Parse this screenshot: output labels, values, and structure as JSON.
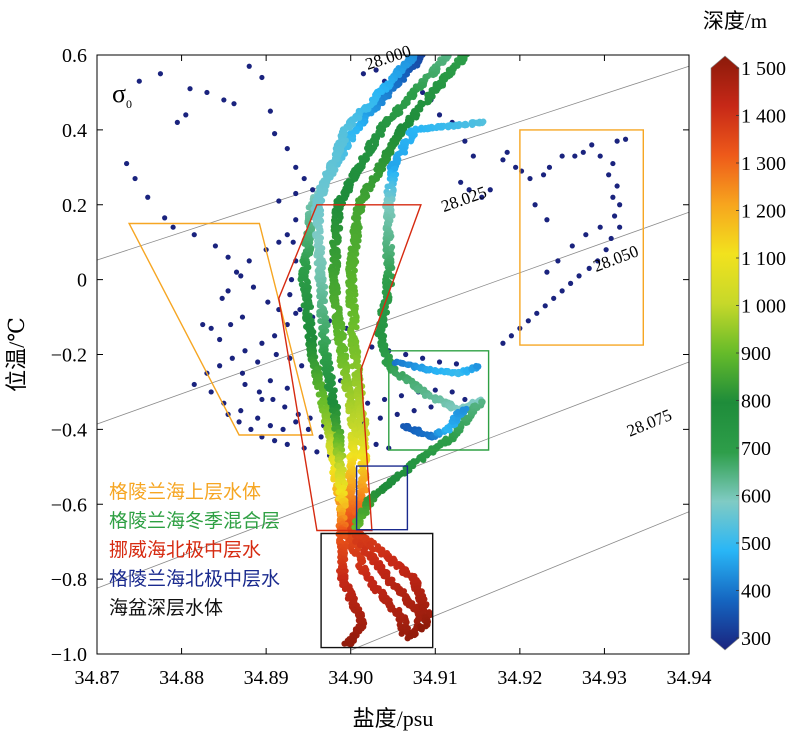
{
  "chart_data": {
    "type": "scatter",
    "title": "",
    "xlabel": "盐度/psu",
    "ylabel": "位温/℃",
    "xlim": [
      34.87,
      34.94
    ],
    "ylim": [
      -1.0,
      0.6
    ],
    "x_ticks": [
      "34.87",
      "34.88",
      "34.89",
      "34.90",
      "34.91",
      "34.92",
      "34.93",
      "34.94"
    ],
    "y_ticks": [
      "0.6",
      "0.4",
      "0.2",
      "0",
      "−0.2",
      "−0.4",
      "−0.6",
      "−0.8",
      "−1.0"
    ],
    "x_tick_values": [
      34.87,
      34.88,
      34.89,
      34.9,
      34.91,
      34.92,
      34.93,
      34.94
    ],
    "y_tick_values": [
      0.6,
      0.4,
      0.2,
      0,
      -0.2,
      -0.4,
      -0.6,
      -0.8,
      -1.0
    ],
    "sigma_label": "σ",
    "sigma_sub": "0",
    "isopycnals": [
      {
        "label": "28.000",
        "points": [
          [
            34.867,
            0.03
          ],
          [
            34.94,
            0.57
          ]
        ],
        "label_at": [
          34.902,
          0.56
        ]
      },
      {
        "label": "28.025",
        "points": [
          [
            34.867,
            -0.41
          ],
          [
            34.94,
            0.18
          ]
        ],
        "label_at": [
          34.911,
          0.18
        ]
      },
      {
        "label": "28.050",
        "points": [
          [
            34.867,
            -0.85
          ],
          [
            34.94,
            -0.22
          ]
        ],
        "label_at": [
          34.929,
          0.02
        ]
      },
      {
        "label": "28.075",
        "points": [
          [
            34.9,
            -0.99
          ],
          [
            34.94,
            -0.62
          ]
        ],
        "label_at": [
          34.933,
          -0.42
        ]
      }
    ],
    "colorbar": {
      "title": "深度/m",
      "min": 300,
      "max": 1500,
      "ticks": [
        "300",
        "400",
        "500",
        "600",
        "700",
        "800",
        "900",
        "1 000",
        "1 100",
        "1 200",
        "1 300",
        "1 400",
        "1 500"
      ],
      "tick_values": [
        300,
        400,
        500,
        600,
        700,
        800,
        900,
        1000,
        1100,
        1200,
        1300,
        1400,
        1500
      ],
      "colors": [
        "#1a237e",
        "#1565c0",
        "#29b6f6",
        "#80cbc4",
        "#2e9e4a",
        "#1e8c3a",
        "#66bb2a",
        "#c6d82a",
        "#f2e21e",
        "#f7a51e",
        "#ee5a1a",
        "#c62817",
        "#8b1a0a"
      ]
    },
    "regions": [
      {
        "name": "格陵兰海上层水体",
        "color": "#f6a623",
        "polygon": [
          [
            34.8738,
            0.15
          ],
          [
            34.8892,
            0.15
          ],
          [
            34.8955,
            -0.415
          ],
          [
            34.8868,
            -0.415
          ]
        ]
      },
      {
        "name": "格陵兰海冬季混合层",
        "color": "#2ea043",
        "polygon": [
          [
            34.9045,
            -0.19
          ],
          [
            34.9163,
            -0.19
          ],
          [
            34.9163,
            -0.455
          ],
          [
            34.9045,
            -0.455
          ]
        ]
      },
      {
        "name": "挪威海北极中层水",
        "color": "#d62a10",
        "polygon": [
          [
            34.896,
            0.2
          ],
          [
            34.9083,
            0.2
          ],
          [
            34.9012,
            -0.24
          ],
          [
            34.9025,
            -0.67
          ],
          [
            34.896,
            -0.67
          ],
          [
            34.8915,
            -0.05
          ]
        ]
      },
      {
        "name": "格陵兰海北极中层水",
        "color": "#1a2a8e",
        "polygon": [
          [
            34.9007,
            -0.498
          ],
          [
            34.9067,
            -0.498
          ],
          [
            34.9067,
            -0.668
          ],
          [
            34.9007,
            -0.668
          ]
        ]
      },
      {
        "name": "海盆深层水体",
        "color": "#111111",
        "polygon": [
          [
            34.8965,
            -0.678
          ],
          [
            34.9097,
            -0.678
          ],
          [
            34.9097,
            -0.983
          ],
          [
            34.8965,
            -0.983
          ]
        ]
      },
      {
        "name": "",
        "color": "#f6a623",
        "polygon": [
          [
            34.92,
            0.4
          ],
          [
            34.9346,
            0.4
          ],
          [
            34.9346,
            -0.175
          ],
          [
            34.92,
            -0.175
          ]
        ]
      }
    ],
    "legend": [
      {
        "label": "格陵兰海上层水体",
        "color": "#f6a623"
      },
      {
        "label": "格陵兰海冬季混合层",
        "color": "#2ea043"
      },
      {
        "label": "挪威海北极中层水",
        "color": "#d62a10"
      },
      {
        "label": "格陵兰海北极中层水",
        "color": "#1a2a8e"
      },
      {
        "label": "海盆深层水体",
        "color": "#111111"
      }
    ],
    "profiles": [
      {
        "offset": 0.0,
        "anchors": [
          [
            34.9085,
            0.6,
            350
          ],
          [
            34.9005,
            0.4,
            500
          ],
          [
            34.8955,
            0.2,
            620
          ],
          [
            34.8945,
            0.0,
            720
          ],
          [
            34.8955,
            -0.2,
            820
          ],
          [
            34.8975,
            -0.4,
            950
          ],
          [
            34.8985,
            -0.55,
            1150
          ],
          [
            34.8995,
            -0.67,
            1320
          ],
          [
            34.902,
            -0.8,
            1400
          ],
          [
            34.906,
            -0.9,
            1450
          ],
          [
            34.9065,
            -0.95,
            1480
          ]
        ]
      },
      {
        "offset": 0.0,
        "anchors": [
          [
            34.9115,
            0.6,
            650
          ],
          [
            34.9035,
            0.4,
            750
          ],
          [
            34.8985,
            0.2,
            800
          ],
          [
            34.898,
            0.0,
            850
          ],
          [
            34.899,
            -0.2,
            900
          ],
          [
            34.9005,
            -0.4,
            1000
          ],
          [
            34.9,
            -0.55,
            1200
          ],
          [
            34.9,
            -0.67,
            1350
          ],
          [
            34.9045,
            -0.8,
            1420
          ],
          [
            34.9085,
            -0.9,
            1460
          ],
          [
            34.907,
            -0.96,
            1490
          ]
        ]
      },
      {
        "offset": 0.0,
        "anchors": [
          [
            34.9135,
            0.6,
            700
          ],
          [
            34.906,
            0.4,
            800
          ],
          [
            34.901,
            0.2,
            850
          ],
          [
            34.9,
            0.0,
            880
          ],
          [
            34.9005,
            -0.2,
            920
          ],
          [
            34.9015,
            -0.4,
            1000
          ],
          [
            34.9015,
            -0.55,
            1200
          ],
          [
            34.9005,
            -0.67,
            1350
          ],
          [
            34.9075,
            -0.8,
            1420
          ],
          [
            34.909,
            -0.9,
            1470
          ],
          [
            34.9085,
            -0.94,
            1500
          ]
        ]
      },
      {
        "offset": 0.0,
        "anchors": [
          [
            34.9075,
            0.6,
            450
          ],
          [
            34.8995,
            0.4,
            550
          ],
          [
            34.896,
            0.2,
            580
          ],
          [
            34.8965,
            0.0,
            620
          ],
          [
            34.897,
            -0.2,
            700
          ],
          [
            34.8985,
            -0.4,
            850
          ],
          [
            34.899,
            -0.6,
            1150
          ],
          [
            34.899,
            -0.67,
            1300
          ],
          [
            34.899,
            -0.8,
            1400
          ],
          [
            34.9015,
            -0.92,
            1460
          ],
          [
            34.8995,
            -0.98,
            1490
          ]
        ]
      },
      {
        "offset": 0.0,
        "anchors": [
          [
            34.9155,
            0.42,
            550
          ],
          [
            34.9075,
            0.4,
            500
          ],
          [
            34.905,
            0.3,
            480
          ],
          [
            34.9045,
            0.2,
            600
          ],
          [
            34.9045,
            0.0,
            700
          ],
          [
            34.9035,
            -0.15,
            750
          ],
          [
            34.9045,
            -0.23,
            700
          ]
        ]
      },
      {
        "offset": 0.0,
        "anchors": [
          [
            34.9045,
            -0.23,
            700
          ],
          [
            34.9085,
            -0.3,
            650
          ],
          [
            34.913,
            -0.35,
            600
          ],
          [
            34.9155,
            -0.32,
            600
          ]
        ]
      },
      {
        "offset": 0.0,
        "anchors": [
          [
            34.9005,
            -0.66,
            900
          ],
          [
            34.9025,
            -0.58,
            820
          ],
          [
            34.907,
            -0.5,
            760
          ],
          [
            34.912,
            -0.42,
            700
          ],
          [
            34.9155,
            -0.32,
            650
          ]
        ]
      },
      {
        "offset": 0.0,
        "anchors": [
          [
            34.9065,
            -0.39,
            380
          ],
          [
            34.9095,
            -0.42,
            420
          ],
          [
            34.9115,
            -0.4,
            500
          ],
          [
            34.9135,
            -0.34,
            450
          ]
        ]
      },
      {
        "offset": 0.0,
        "anchors": [
          [
            34.9055,
            -0.22,
            420
          ],
          [
            34.909,
            -0.24,
            480
          ],
          [
            34.913,
            -0.25,
            520
          ],
          [
            34.9155,
            -0.23,
            450
          ]
        ]
      }
    ],
    "scatter_low": [
      [
        34.8735,
        0.31
      ],
      [
        34.8745,
        0.27
      ],
      [
        34.876,
        0.22
      ],
      [
        34.878,
        0.165
      ],
      [
        34.879,
        0.14
      ],
      [
        34.8815,
        0.12
      ],
      [
        34.884,
        0.09
      ],
      [
        34.8855,
        0.06
      ],
      [
        34.887,
        0.01
      ],
      [
        34.875,
        0.53
      ],
      [
        34.8775,
        0.55
      ],
      [
        34.881,
        0.51
      ],
      [
        34.883,
        0.5
      ],
      [
        34.8805,
        0.44
      ],
      [
        34.8795,
        0.42
      ],
      [
        34.885,
        0.48
      ],
      [
        34.8862,
        0.47
      ],
      [
        34.888,
        0.57
      ],
      [
        34.8895,
        0.54
      ],
      [
        34.8905,
        0.45
      ],
      [
        34.891,
        0.39
      ],
      [
        34.8925,
        0.35
      ],
      [
        34.8935,
        0.3
      ],
      [
        34.8945,
        0.27
      ],
      [
        34.8955,
        0.24
      ],
      [
        34.8935,
        0.23
      ],
      [
        34.8915,
        0.21
      ],
      [
        34.8935,
        0.16
      ],
      [
        34.8932,
        0.1
      ],
      [
        34.8935,
        0.05
      ],
      [
        34.893,
        0.0
      ],
      [
        34.8928,
        -0.04
      ],
      [
        34.894,
        -0.08
      ],
      [
        34.8925,
        -0.12
      ],
      [
        34.891,
        -0.15
      ],
      [
        34.8895,
        -0.17
      ],
      [
        34.8875,
        -0.19
      ],
      [
        34.886,
        -0.21
      ],
      [
        34.8845,
        -0.23
      ],
      [
        34.883,
        -0.25
      ],
      [
        34.8815,
        -0.28
      ],
      [
        34.8835,
        -0.3
      ],
      [
        34.885,
        -0.33
      ],
      [
        34.887,
        -0.35
      ],
      [
        34.889,
        -0.37
      ],
      [
        34.8905,
        -0.39
      ],
      [
        34.892,
        -0.4
      ],
      [
        34.8845,
        -0.16
      ],
      [
        34.8835,
        -0.13
      ],
      [
        34.8825,
        -0.12
      ],
      [
        34.8858,
        -0.12
      ],
      [
        34.8872,
        -0.1
      ],
      [
        34.8848,
        -0.05
      ],
      [
        34.8855,
        -0.03
      ],
      [
        34.8885,
        -0.02
      ],
      [
        34.8902,
        -0.06
      ],
      [
        34.8915,
        -0.08
      ],
      [
        34.8872,
        -0.25
      ],
      [
        34.889,
        -0.22
      ],
      [
        34.8905,
        -0.27
      ],
      [
        34.8925,
        -0.29
      ],
      [
        34.8855,
        -0.36
      ],
      [
        34.8868,
        -0.38
      ],
      [
        34.8882,
        -0.4
      ],
      [
        34.8895,
        -0.42
      ],
      [
        34.891,
        -0.43
      ],
      [
        34.8925,
        -0.44
      ],
      [
        34.8945,
        -0.45
      ],
      [
        34.896,
        -0.46
      ],
      [
        34.8975,
        -0.47
      ],
      [
        34.8985,
        -0.48
      ],
      [
        34.8965,
        -0.42
      ],
      [
        34.895,
        -0.4
      ],
      [
        34.8935,
        -0.38
      ],
      [
        34.8895,
        -0.32
      ],
      [
        34.898,
        -0.35
      ],
      [
        34.9,
        -0.34
      ],
      [
        34.902,
        -0.33
      ],
      [
        34.904,
        -0.32
      ],
      [
        34.906,
        -0.31
      ],
      [
        34.908,
        -0.3
      ],
      [
        34.91,
        -0.295
      ],
      [
        34.912,
        -0.3
      ],
      [
        34.9015,
        -0.38
      ],
      [
        34.9035,
        -0.37
      ],
      [
        34.9055,
        -0.36
      ],
      [
        34.9075,
        -0.35
      ],
      [
        34.9095,
        -0.34
      ],
      [
        34.9115,
        -0.33
      ],
      [
        34.9135,
        -0.32
      ],
      [
        34.9005,
        -0.17
      ],
      [
        34.9025,
        -0.18
      ],
      [
        34.9045,
        -0.19
      ],
      [
        34.9065,
        -0.2
      ],
      [
        34.9085,
        -0.21
      ],
      [
        34.9105,
        -0.22
      ],
      [
        34.9125,
        -0.225
      ],
      [
        34.8995,
        -0.13
      ],
      [
        34.8975,
        -0.11
      ],
      [
        34.8955,
        -0.1
      ],
      [
        34.8935,
        -0.09
      ],
      [
        34.9015,
        0.55
      ],
      [
        34.903,
        0.56
      ],
      [
        34.904,
        0.53
      ],
      [
        34.9055,
        0.54
      ],
      [
        34.907,
        0.56
      ],
      [
        34.9085,
        0.5
      ],
      [
        34.9095,
        0.48
      ],
      [
        34.9105,
        0.44
      ],
      [
        34.912,
        0.42
      ],
      [
        34.9135,
        0.37
      ],
      [
        34.9145,
        0.33
      ],
      [
        34.913,
        0.26
      ],
      [
        34.914,
        0.24
      ],
      [
        34.9155,
        0.22
      ],
      [
        34.9165,
        0.24
      ],
      [
        34.918,
        0.32
      ],
      [
        34.9185,
        0.34
      ],
      [
        34.9195,
        0.3
      ],
      [
        34.9202,
        0.29
      ],
      [
        34.9212,
        0.27
      ],
      [
        34.9228,
        0.28
      ],
      [
        34.9235,
        0.3
      ],
      [
        34.925,
        0.33
      ],
      [
        34.9265,
        0.33
      ],
      [
        34.9275,
        0.34
      ],
      [
        34.9285,
        0.36
      ],
      [
        34.9295,
        0.33
      ],
      [
        34.931,
        0.31
      ],
      [
        34.9315,
        0.37
      ],
      [
        34.9325,
        0.375
      ],
      [
        34.9305,
        0.28
      ],
      [
        34.9315,
        0.25
      ],
      [
        34.931,
        0.22
      ],
      [
        34.9318,
        0.2
      ],
      [
        34.9312,
        0.17
      ],
      [
        34.9318,
        0.14
      ],
      [
        34.9308,
        0.11
      ],
      [
        34.9302,
        0.08
      ],
      [
        34.9292,
        0.05
      ],
      [
        34.9282,
        0.03
      ],
      [
        34.927,
        0.01
      ],
      [
        34.926,
        -0.01
      ],
      [
        34.925,
        -0.03
      ],
      [
        34.924,
        -0.05
      ],
      [
        34.923,
        -0.07
      ],
      [
        34.922,
        -0.09
      ],
      [
        34.921,
        -0.11
      ],
      [
        34.92,
        -0.13
      ],
      [
        34.919,
        -0.15
      ],
      [
        34.918,
        -0.17
      ],
      [
        34.9262,
        0.09
      ],
      [
        34.9278,
        0.12
      ],
      [
        34.9295,
        0.14
      ],
      [
        34.9245,
        0.05
      ],
      [
        34.9232,
        0.02
      ],
      [
        34.9218,
        0.2
      ],
      [
        34.9232,
        0.16
      ],
      [
        34.8865,
        0.02
      ],
      [
        34.888,
        0.05
      ],
      [
        34.89,
        0.08
      ],
      [
        34.8915,
        0.1
      ],
      [
        34.8925,
        0.12
      ],
      [
        34.8875,
        -0.28
      ],
      [
        34.8892,
        -0.3
      ],
      [
        34.8908,
        -0.32
      ],
      [
        34.8922,
        -0.34
      ],
      [
        34.8938,
        -0.36
      ],
      [
        34.8952,
        -0.37
      ],
      [
        34.8968,
        -0.39
      ],
      [
        34.8985,
        -0.4
      ],
      [
        34.9,
        -0.42
      ],
      [
        34.9015,
        -0.43
      ],
      [
        34.903,
        -0.44
      ],
      [
        34.9045,
        -0.45
      ],
      [
        34.8912,
        -0.2
      ],
      [
        34.8928,
        -0.21
      ],
      [
        34.8942,
        -0.23
      ],
      [
        34.8958,
        -0.24
      ],
      [
        34.8972,
        -0.26
      ],
      [
        34.8988,
        -0.27
      ]
    ]
  }
}
